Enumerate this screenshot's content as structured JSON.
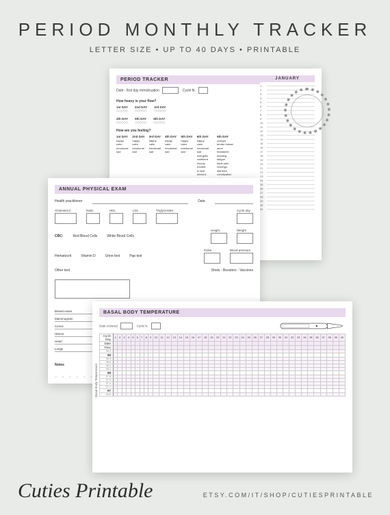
{
  "header": {
    "title": "PERIOD MONTHLY TRACKER",
    "subtitle": "LETTER SIZE • UP TO 40 DAYS • PRINTABLE"
  },
  "sheet1": {
    "title": "PERIOD TRACKER",
    "month": "JANUARY",
    "meta_date": "Date - first day menstruation",
    "meta_cycle": "Cycle N.",
    "q_flow": "How heavy is your flow?",
    "q_feel": "How are you feeling?",
    "days": [
      "1st DAY",
      "2nd DAY",
      "3rd DAY",
      "4th DAY",
      "5th DAY",
      "6th DAY"
    ],
    "feelings": [
      "happy",
      "calm",
      "emotional",
      "sad",
      "energetic",
      "confident",
      "moody",
      "excited",
      "in love",
      "anxious",
      "tired",
      "stressed",
      "angry"
    ],
    "symptoms_head": "6th DAY",
    "symptoms": [
      "cramps",
      "tender breast",
      "acne",
      "headache",
      "bloating",
      "fatigue",
      "back pain",
      "cravings",
      "diarrhea",
      "constipation",
      "sick"
    ],
    "pd_label": "Period duration:",
    "cal_max": 31
  },
  "sheet2": {
    "title": "ANNUAL PHYSICAL EXAM",
    "hp": "Health practitioner",
    "date": "Date",
    "chol": "Cholesterol",
    "ratio": "Ratio",
    "hdl": "HDL",
    "ldl": "LDL",
    "trig": "Triglycerides",
    "cycle_day": "Cycle day",
    "cbc": "CBC:",
    "rbc": "Red Blood Cells",
    "wbc": "White Blood Cells",
    "height": "Height",
    "weight": "Weight",
    "pulse": "Pulse",
    "bp": "Blood pressure",
    "hematocrit": "Hematocrit",
    "vitd": "Vitamin D",
    "urine": "Urine test",
    "pap": "Pap test",
    "shots": "Shots - Boosters - Vaccines",
    "other": "Other test",
    "status": "Status",
    "comments": "Comments",
    "exams": [
      "Breast exam",
      "Mammogram",
      "Cervix",
      "Uterus",
      "Heart",
      "Lungs"
    ],
    "notes": "Notes"
  },
  "sheet3": {
    "title": "BASAL BODY TEMPERATURE",
    "date_covered": "Date covered",
    "cycle_n": "Cycle N.",
    "head_rows": [
      "Cycle Day",
      "Date",
      "Time"
    ],
    "days": 40,
    "temps_major": [
      "99",
      "98",
      "97"
    ],
    "temps_minor": [
      "99.2",
      "98.8",
      "98.6",
      "98.4",
      "98.2",
      "97.8",
      "97.6",
      "97.4",
      "97.2",
      "96.8"
    ],
    "ylabel": "Basal Body Temperature"
  },
  "footer": {
    "brand": "Cuties Printable",
    "etsy": "ETSY.COM/IT/SHOP/CUTIESPRINTABLE"
  },
  "colors": {
    "accent": "#e8d8ed",
    "bg": "#e8ebe8"
  }
}
